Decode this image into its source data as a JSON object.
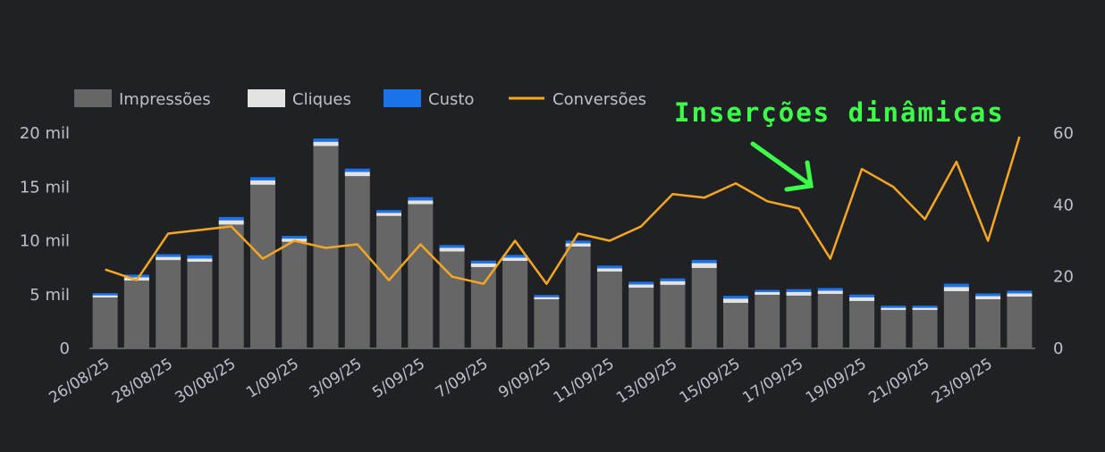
{
  "chart_data": {
    "type": "bar",
    "annotation": "Inserções dinâmicas",
    "categories": [
      "26/08/25",
      null,
      "28/08/25",
      null,
      "30/08/25",
      null,
      "1/09/25",
      null,
      "3/09/25",
      null,
      "5/09/25",
      null,
      "7/09/25",
      null,
      "9/09/25",
      null,
      "11/09/25",
      null,
      "13/09/25",
      null,
      "15/09/25",
      null,
      "17/09/25",
      null,
      "19/09/25",
      null,
      "21/09/25",
      null,
      "23/09/25",
      null
    ],
    "series": [
      {
        "name": "Impressões",
        "color": "#666666",
        "values": [
          4730,
          6300,
          8200,
          8050,
          11500,
          15200,
          9900,
          18800,
          16000,
          12300,
          13400,
          9000,
          7550,
          8130,
          4560,
          9460,
          7140,
          5640,
          5900,
          7470,
          4230,
          4980,
          4900,
          5060,
          4400,
          3570,
          3570,
          5310,
          4560,
          4810
        ]
      },
      {
        "name": "Cliques",
        "color": "#e3e3e3",
        "values": [
          200,
          300,
          300,
          300,
          400,
          400,
          300,
          400,
          400,
          300,
          350,
          350,
          350,
          300,
          200,
          300,
          300,
          300,
          350,
          450,
          400,
          250,
          350,
          300,
          350,
          200,
          200,
          400,
          300,
          300
        ]
      },
      {
        "name": "Custo",
        "color": "#1a73e8",
        "values": [
          200,
          250,
          250,
          300,
          300,
          300,
          250,
          300,
          300,
          250,
          300,
          250,
          250,
          250,
          200,
          250,
          250,
          250,
          250,
          300,
          250,
          200,
          250,
          250,
          250,
          200,
          200,
          300,
          250,
          250
        ]
      },
      {
        "name": "Conversões",
        "color": "#f5a623",
        "type": "line",
        "axis": "y2",
        "values": [
          22,
          19,
          32,
          33,
          34,
          25,
          30,
          28,
          29,
          19,
          29,
          20,
          18,
          30,
          18,
          32,
          30,
          34,
          43,
          42,
          46,
          41,
          39,
          25,
          50,
          45,
          36,
          52,
          30,
          59
        ]
      }
    ],
    "ylim": [
      0,
      20000
    ],
    "yticks": [
      {
        "value": 0,
        "label": "0"
      },
      {
        "value": 5000,
        "label": "5 mil"
      },
      {
        "value": 10000,
        "label": "10 mil"
      },
      {
        "value": 15000,
        "label": "15 mil"
      },
      {
        "value": 20000,
        "label": "20 mil"
      }
    ],
    "y2lim": [
      0,
      60
    ],
    "y2ticks": [
      0,
      20,
      40,
      60
    ],
    "grid": false
  }
}
